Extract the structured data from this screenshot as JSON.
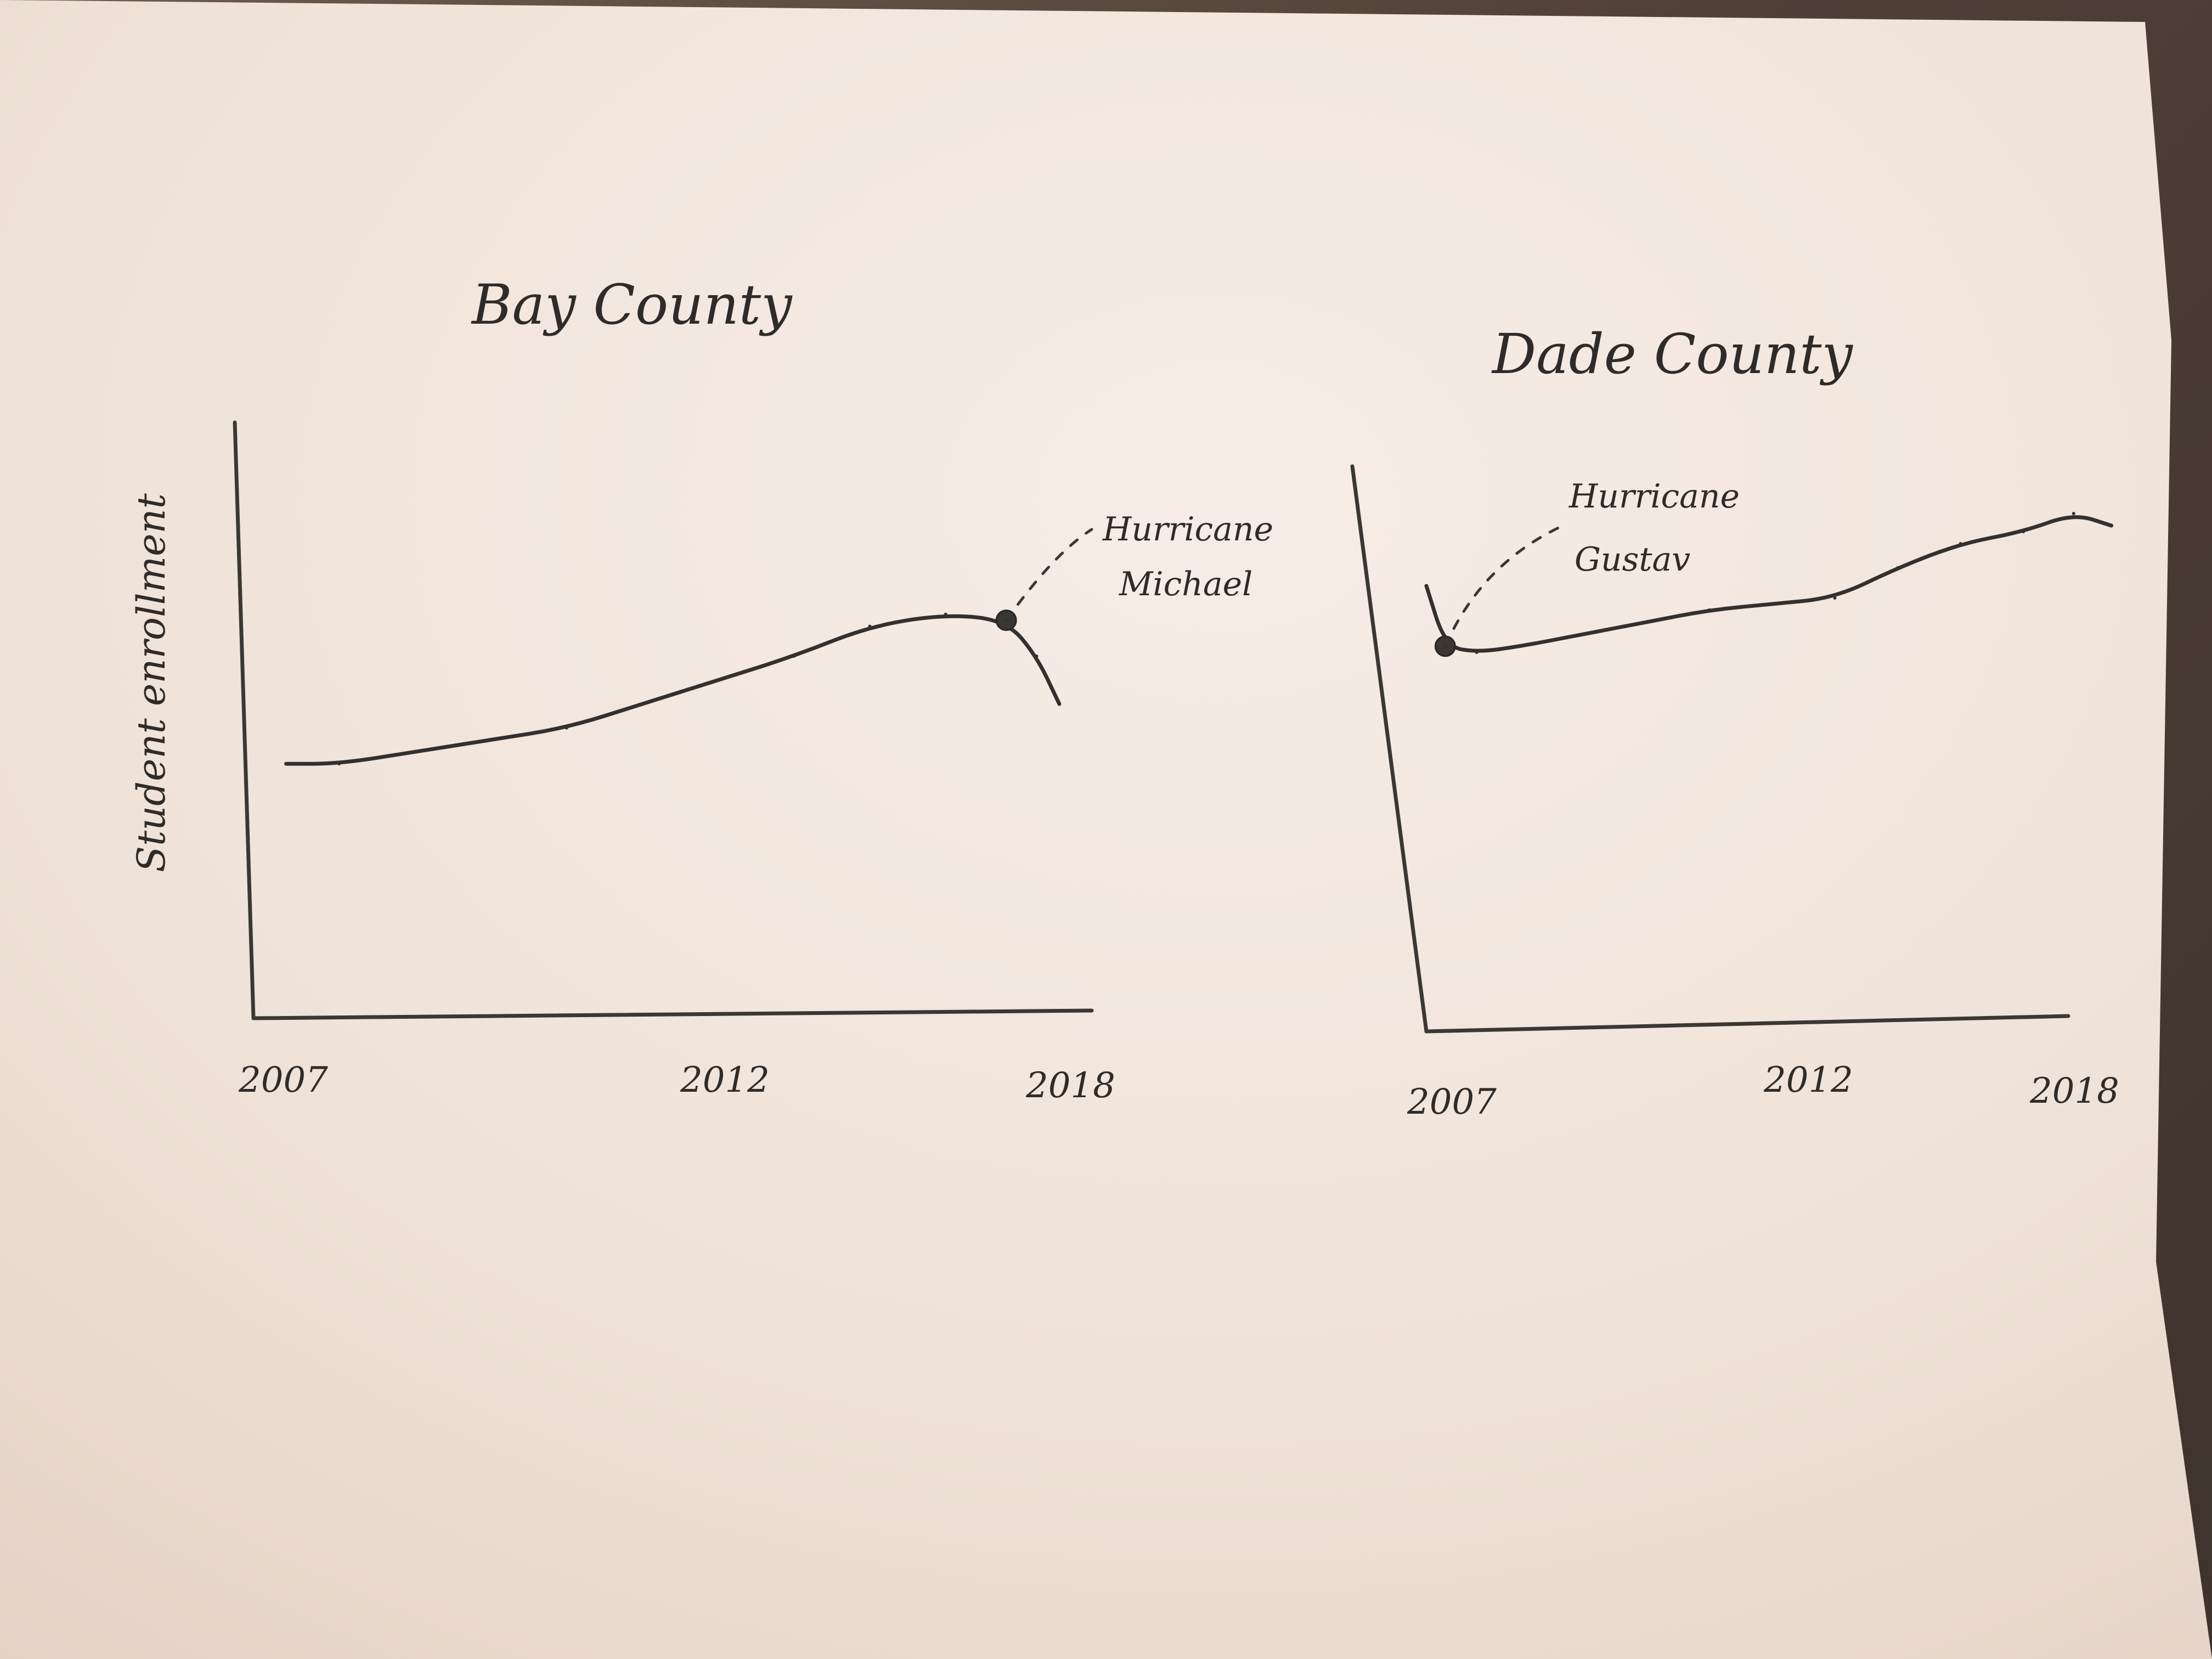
{
  "chart_data": [
    {
      "type": "line",
      "title": "Bay County",
      "ylabel": "Student enrollment",
      "xlabel": "",
      "x_ticks": [
        "2007",
        "2012",
        "2018"
      ],
      "xlim": [
        2007,
        2018
      ],
      "ylim": [
        0,
        100
      ],
      "x": [
        2007.3,
        2008.0,
        2009.0,
        2010.0,
        2011.0,
        2012.0,
        2013.0,
        2014.0,
        2015.0,
        2016.0,
        2016.8,
        2017.2,
        2017.5
      ],
      "series": [
        {
          "values": [
            42,
            42,
            44,
            46,
            48,
            52,
            56,
            60,
            65,
            67,
            66,
            60,
            52
          ]
        }
      ],
      "annotations": [
        {
          "lines": [
            "Hurricane",
            "Michael"
          ],
          "x": 2016.8,
          "y": 66
        }
      ],
      "grid": false
    },
    {
      "type": "line",
      "title": "Dade County",
      "ylabel": "",
      "xlabel": "",
      "x_ticks": [
        "2007",
        "2012",
        "2018"
      ],
      "xlim": [
        2007,
        2018
      ],
      "ylim": [
        0,
        100
      ],
      "x": [
        2007.0,
        2007.3,
        2007.8,
        2008.5,
        2009.5,
        2010.5,
        2011.5,
        2012.5,
        2013.5,
        2014.5,
        2015.5,
        2016.5,
        2017.3,
        2017.9
      ],
      "series": [
        {
          "values": [
            72,
            62,
            61,
            62,
            64,
            66,
            68,
            69,
            70,
            75,
            79,
            81,
            84,
            82
          ]
        }
      ],
      "annotations": [
        {
          "lines": [
            "Hurricane",
            "Gustav"
          ],
          "x": 2007.3,
          "y": 62
        }
      ],
      "grid": false
    }
  ]
}
